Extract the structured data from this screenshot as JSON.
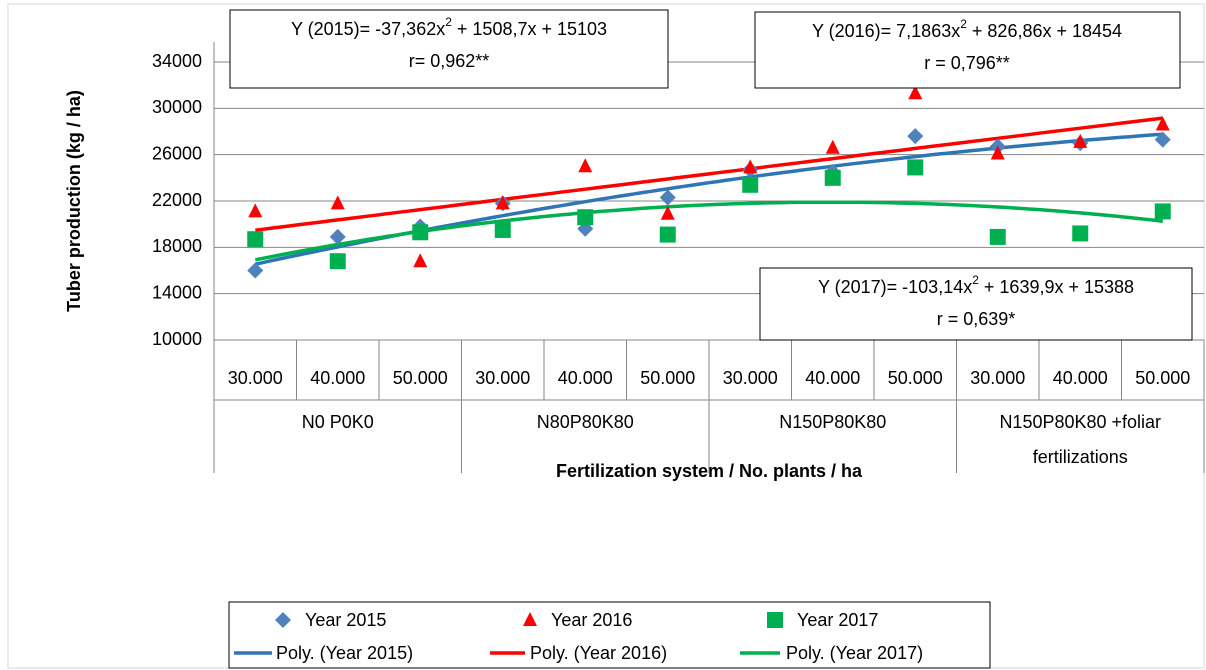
{
  "chart_data": {
    "type": "scatter",
    "y_label": "Tuber production (kg / ha)",
    "x_label": "Fertilization system / No. plants / ha",
    "categories": [
      "30.000",
      "40.000",
      "50.000",
      "30.000",
      "40.000",
      "50.000",
      "30.000",
      "40.000",
      "50.000",
      "30.000",
      "40.000",
      "50.000"
    ],
    "groups": [
      [
        "N0 P0K0"
      ],
      [
        "N80P80K80"
      ],
      [
        "N150P80K80"
      ],
      [
        "N150P80K80 +foliar",
        "fertilizations"
      ]
    ],
    "ylim": [
      10000,
      34000
    ],
    "yticks": [
      10000,
      14000,
      18000,
      22000,
      26000,
      30000,
      34000
    ],
    "grid": true,
    "series": [
      {
        "name": "Year 2015",
        "marker": "diamond",
        "color": "#4f81bd",
        "trend_color": "#2e75b6",
        "trendline_name": "Poly. (Year 2015)",
        "values": [
          16000,
          18900,
          19800,
          21800,
          19600,
          22300,
          24700,
          24500,
          27600,
          26700,
          27000,
          27300
        ]
      },
      {
        "name": "Year 2016",
        "marker": "triangle",
        "color": "#ff0000",
        "trend_color": "#ff0000",
        "trendline_name": "Poly. (Year 2016)",
        "values": [
          21100,
          21800,
          16800,
          21800,
          25000,
          20900,
          24900,
          26600,
          31300,
          26100,
          27100,
          28600
        ]
      },
      {
        "name": "Year 2017",
        "marker": "square",
        "color": "#00b050",
        "trend_color": "#00b050",
        "trendline_name": "Poly. (Year 2017)",
        "values": [
          18700,
          16800,
          19300,
          19500,
          20600,
          19100,
          23400,
          24000,
          24900,
          18900,
          19200,
          21100
        ]
      }
    ],
    "annotations": [
      {
        "equation": [
          "Y  (2015)= -37,362x",
          "2",
          " + 1508,7x + 15103"
        ],
        "r": "r= 0,962**"
      },
      {
        "equation": [
          "Y (2016)= 7,1863x",
          "2",
          " + 826,86x + 18454"
        ],
        "r": "r = 0,796**"
      },
      {
        "equation": [
          "Y (2017)= -103,14x",
          "2",
          " + 1639,9x + 15388"
        ],
        "r": "r = 0,639*"
      }
    ]
  }
}
